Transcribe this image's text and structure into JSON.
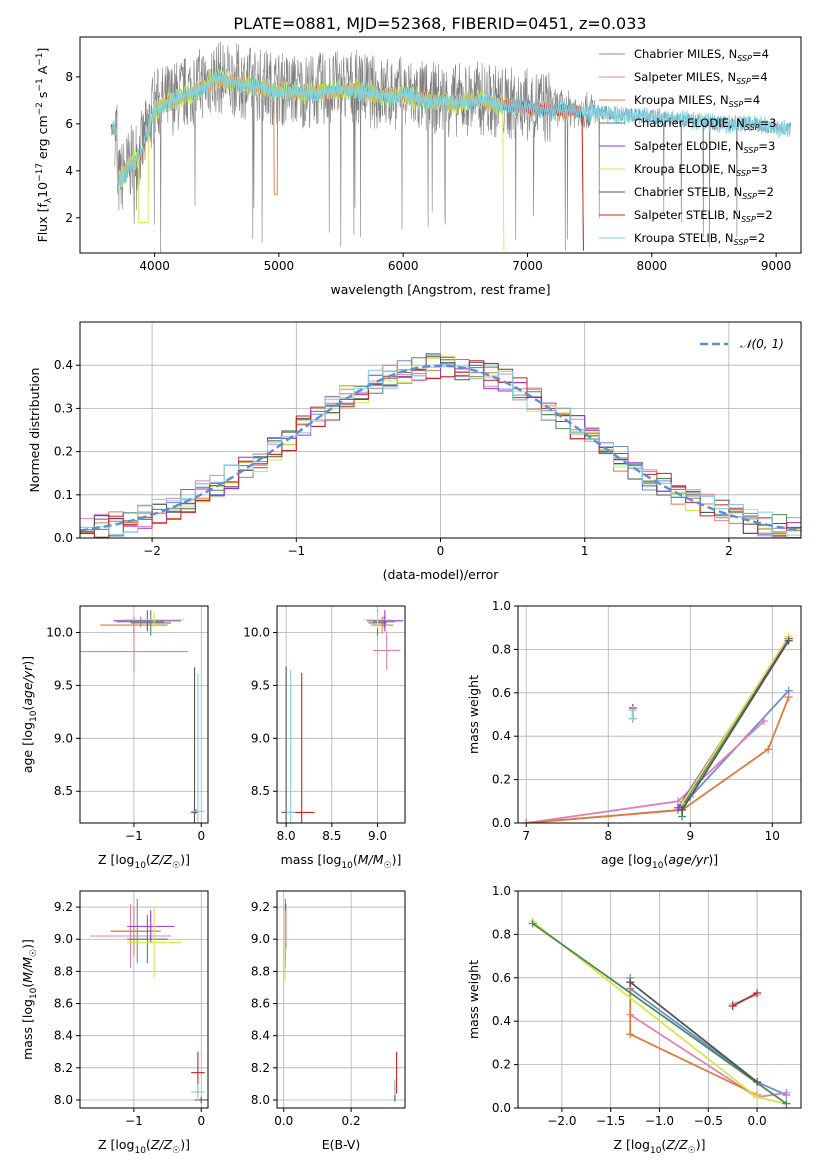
{
  "figure_title": "PLATE=0881, MJD=52368, FIBERID=0451, z=0.033",
  "colors": {
    "Chabrier MILES": "#6a8fd2",
    "Salpeter MILES": "#e080b8",
    "Kroupa MILES": "#e07b39",
    "Chabrier ELODIE": "#4e8a5a",
    "Salpeter ELODIE": "#9933cc",
    "Kroupa ELODIE": "#d4e84a",
    "Chabrier STELIB": "#555555",
    "Salpeter STELIB": "#cc2222",
    "Kroupa STELIB": "#80d0e0",
    "gauss": "#5b8fd6",
    "data": "#808080"
  },
  "chart_data": [
    {
      "id": "spectrum",
      "type": "line",
      "title": "PLATE=0881, MJD=52368, FIBERID=0451, z=0.033",
      "xlabel": "wavelength [Angstrom, rest frame]",
      "ylabel_parts": [
        "Flux [f",
        "λ",
        "10",
        "−17",
        " erg cm",
        "−2",
        " s",
        "−1",
        " A",
        "−1",
        "]"
      ],
      "xlim": [
        3400,
        9200
      ],
      "ylim": [
        0.5,
        9.7
      ],
      "xticks": [
        4000,
        5000,
        6000,
        7000,
        8000,
        9000
      ],
      "yticks": [
        2,
        4,
        6,
        8
      ],
      "legend_position": "upper right",
      "legend": [
        {
          "name": "Chabrier MILES",
          "nssp": "4"
        },
        {
          "name": "Salpeter MILES",
          "nssp": "4"
        },
        {
          "name": "Kroupa MILES",
          "nssp": "4"
        },
        {
          "name": "Chabrier ELODIE",
          "nssp": "3"
        },
        {
          "name": "Salpeter ELODIE",
          "nssp": "3"
        },
        {
          "name": "Kroupa ELODIE",
          "nssp": "3"
        },
        {
          "name": "Chabrier STELIB",
          "nssp": "2"
        },
        {
          "name": "Salpeter STELIB",
          "nssp": "2"
        },
        {
          "name": "Kroupa STELIB",
          "nssp": "2"
        }
      ],
      "data_continuum": [
        [
          3700,
          3.4
        ],
        [
          3800,
          4.3
        ],
        [
          3900,
          5.0
        ],
        [
          4000,
          6.8
        ],
        [
          4100,
          7.0
        ],
        [
          4200,
          7.2
        ],
        [
          4300,
          7.5
        ],
        [
          4400,
          7.8
        ],
        [
          4500,
          8.0
        ],
        [
          4600,
          7.9
        ],
        [
          4800,
          7.7
        ],
        [
          5000,
          7.5
        ],
        [
          5200,
          7.4
        ],
        [
          5400,
          7.5
        ],
        [
          5600,
          7.6
        ],
        [
          5800,
          7.3
        ],
        [
          6000,
          7.3
        ],
        [
          6200,
          7.1
        ],
        [
          6400,
          7.0
        ],
        [
          6600,
          7.1
        ],
        [
          6800,
          6.9
        ],
        [
          7000,
          6.8
        ],
        [
          7200,
          6.7
        ],
        [
          7400,
          6.6
        ],
        [
          7600,
          6.5
        ],
        [
          7800,
          6.4
        ],
        [
          8000,
          6.3
        ],
        [
          8200,
          6.2
        ],
        [
          8400,
          6.1
        ],
        [
          8600,
          6.0
        ],
        [
          8800,
          6.0
        ],
        [
          9000,
          5.8
        ],
        [
          9100,
          5.8
        ]
      ],
      "model_continuum": [
        [
          3700,
          3.5
        ],
        [
          3800,
          4.2
        ],
        [
          3900,
          4.8
        ],
        [
          4000,
          6.6
        ],
        [
          4100,
          6.9
        ],
        [
          4200,
          7.1
        ],
        [
          4300,
          7.3
        ],
        [
          4400,
          7.6
        ],
        [
          4500,
          7.9
        ],
        [
          4600,
          7.8
        ],
        [
          4800,
          7.6
        ],
        [
          5000,
          7.4
        ],
        [
          5200,
          7.3
        ],
        [
          5400,
          7.4
        ],
        [
          5600,
          7.45
        ],
        [
          5800,
          7.2
        ],
        [
          6000,
          7.2
        ],
        [
          6200,
          7.0
        ],
        [
          6400,
          6.9
        ],
        [
          6600,
          7.0
        ],
        [
          6800,
          6.8
        ],
        [
          7000,
          6.7
        ],
        [
          7200,
          6.6
        ],
        [
          7400,
          6.55
        ],
        [
          7600,
          6.45
        ],
        [
          7800,
          6.35
        ],
        [
          8000,
          6.3
        ],
        [
          8200,
          6.2
        ],
        [
          8400,
          6.1
        ],
        [
          8600,
          6.0
        ],
        [
          8800,
          6.0
        ],
        [
          9000,
          5.85
        ],
        [
          9100,
          5.8
        ]
      ]
    },
    {
      "id": "residuals",
      "type": "line",
      "xlabel": "(data-model)/error",
      "ylabel": "Normed distribution",
      "xlim": [
        -2.5,
        2.5
      ],
      "ylim": [
        0,
        0.5
      ],
      "xticks": [
        -2,
        -1,
        0,
        1,
        2
      ],
      "yticks": [
        0.0,
        0.1,
        0.2,
        0.3,
        0.4
      ],
      "grid": true,
      "legend_position": "upper right",
      "legend_label": "𝒩(0, 1)",
      "gaussian": {
        "mean": 0,
        "sigma": 1
      },
      "bin_width": 0.1
    },
    {
      "id": "age_vs_Z",
      "type": "scatter",
      "xlabel": "Z [log10(Z/Z☉)]",
      "ylabel": "age  [log10(age/yr)]",
      "xlim": [
        -1.8,
        0.1
      ],
      "ylim": [
        8.2,
        10.25
      ],
      "xticks": [
        -1,
        0
      ],
      "yticks": [
        8.5,
        9.0,
        9.5,
        10.0
      ],
      "grid": true,
      "points": [
        {
          "s": "Chabrier MILES",
          "x": -0.9,
          "y": 10.1,
          "xe": 0.35,
          "ye": 0.05
        },
        {
          "s": "Salpeter MILES",
          "x": -1.0,
          "y": 9.82,
          "xe": 0.8,
          "ye": 0.2
        },
        {
          "s": "Kroupa MILES",
          "x": -1.0,
          "y": 10.07,
          "xe": 0.5,
          "ye": 0.08
        },
        {
          "s": "Chabrier ELODIE",
          "x": -0.75,
          "y": 10.09,
          "xe": 0.3,
          "ye": 0.12
        },
        {
          "s": "Salpeter ELODIE",
          "x": -0.8,
          "y": 10.11,
          "xe": 0.5,
          "ye": 0.1
        },
        {
          "s": "Kroupa ELODIE",
          "x": -0.7,
          "y": 10.12,
          "xe": 0.45,
          "ye": 0.08
        },
        {
          "s": "Chabrier STELIB",
          "x": -0.1,
          "y": 8.3,
          "xe": 0.05,
          "ye": 1.37
        },
        {
          "s": "Salpeter STELIB",
          "x": -0.08,
          "y": 8.31,
          "xe": 0.04,
          "ye": 0.02
        },
        {
          "s": "Kroupa STELIB",
          "x": -0.05,
          "y": 8.31,
          "xe": 0.1,
          "ye": 1.3
        }
      ]
    },
    {
      "id": "age_vs_mass",
      "type": "scatter",
      "xlabel": "mass [log10(M/M☉)]",
      "xlim": [
        7.9,
        9.3
      ],
      "ylim": [
        8.2,
        10.25
      ],
      "xticks": [
        8.0,
        8.5,
        9.0
      ],
      "yticks": [
        8.5,
        9.0,
        9.5,
        10.0
      ],
      "grid": true,
      "points": [
        {
          "s": "Chabrier MILES",
          "x": 9.07,
          "y": 10.1,
          "xe": 0.12,
          "ye": 0.05
        },
        {
          "s": "Salpeter MILES",
          "x": 9.1,
          "y": 9.83,
          "xe": 0.15,
          "ye": 0.18
        },
        {
          "s": "Kroupa MILES",
          "x": 9.05,
          "y": 10.07,
          "xe": 0.12,
          "ye": 0.08
        },
        {
          "s": "Chabrier ELODIE",
          "x": 9.0,
          "y": 10.09,
          "xe": 0.1,
          "ye": 0.12
        },
        {
          "s": "Salpeter ELODIE",
          "x": 9.08,
          "y": 10.11,
          "xe": 0.2,
          "ye": 0.1
        },
        {
          "s": "Kroupa ELODIE",
          "x": 9.0,
          "y": 10.12,
          "xe": 0.15,
          "ye": 0.08
        },
        {
          "s": "Chabrier STELIB",
          "x": 8.0,
          "y": 8.3,
          "xe": 0.05,
          "ye": 1.38
        },
        {
          "s": "Salpeter STELIB",
          "x": 8.17,
          "y": 8.3,
          "xe": 0.14,
          "ye": 1.32
        },
        {
          "s": "Kroupa STELIB",
          "x": 8.05,
          "y": 8.3,
          "xe": 0.05,
          "ye": 1.35
        }
      ]
    },
    {
      "id": "weight_vs_age",
      "type": "line",
      "xlabel": "age  [log10(age/yr)]",
      "ylabel": "mass weight",
      "xlim": [
        6.9,
        10.35
      ],
      "ylim": [
        0,
        1.0
      ],
      "xticks": [
        7,
        8,
        9,
        10
      ],
      "yticks": [
        0.0,
        0.2,
        0.4,
        0.6,
        0.8,
        1.0
      ],
      "grid": true,
      "series": [
        {
          "s": "Chabrier MILES",
          "pts": [
            [
              7.0,
              0.0
            ],
            [
              8.85,
              0.06
            ],
            [
              9.0,
              0.12
            ],
            [
              10.2,
              0.61
            ]
          ]
        },
        {
          "s": "Salpeter MILES",
          "pts": [
            [
              7.0,
              0.0
            ],
            [
              8.85,
              0.1
            ],
            [
              9.9,
              0.47
            ]
          ]
        },
        {
          "s": "Kroupa MILES",
          "pts": [
            [
              7.0,
              0.0
            ],
            [
              8.9,
              0.06
            ],
            [
              9.95,
              0.34
            ],
            [
              10.2,
              0.58
            ]
          ]
        },
        {
          "s": "Chabrier ELODIE",
          "pts": [
            [
              8.9,
              0.03
            ],
            [
              8.9,
              0.08
            ],
            [
              10.2,
              0.85
            ]
          ]
        },
        {
          "s": "Salpeter ELODIE",
          "pts": [
            [
              8.85,
              0.07
            ],
            [
              10.2,
              0.85
            ]
          ]
        },
        {
          "s": "Kroupa ELODIE",
          "pts": [
            [
              8.9,
              0.09
            ],
            [
              10.2,
              0.86
            ]
          ]
        },
        {
          "s": "Chabrier STELIB",
          "pts": [
            [
              8.9,
              0.06
            ],
            [
              10.2,
              0.84
            ]
          ]
        },
        {
          "s": "Salpeter STELIB",
          "pts": [
            [
              8.3,
              0.48
            ],
            [
              8.3,
              0.53
            ]
          ]
        },
        {
          "s": "Kroupa STELIB",
          "pts": [
            [
              8.3,
              0.48
            ],
            [
              8.3,
              0.52
            ]
          ]
        }
      ]
    },
    {
      "id": "mass_vs_Z",
      "type": "scatter",
      "xlabel": "Z [log10(Z/Z☉)]",
      "ylabel": "mass [log10(M/M☉)]",
      "xlim": [
        -1.8,
        0.1
      ],
      "ylim": [
        7.95,
        9.3
      ],
      "xticks": [
        -1,
        0
      ],
      "yticks": [
        8.0,
        8.2,
        8.4,
        8.6,
        8.8,
        9.0,
        9.2
      ],
      "grid": true,
      "points": [
        {
          "s": "Chabrier MILES",
          "x": -0.95,
          "y": 9.05,
          "xe": 0.35,
          "ye": 0.2
        },
        {
          "s": "Salpeter MILES",
          "x": -1.05,
          "y": 9.02,
          "xe": 0.6,
          "ye": 0.2
        },
        {
          "s": "Kroupa MILES",
          "x": -1.0,
          "y": 9.05,
          "xe": 0.35,
          "ye": 0.15
        },
        {
          "s": "Chabrier ELODIE",
          "x": -0.8,
          "y": 9.0,
          "xe": 0.3,
          "ye": 0.15
        },
        {
          "s": "Salpeter ELODIE",
          "x": -0.75,
          "y": 9.08,
          "xe": 0.35,
          "ye": 0.1
        },
        {
          "s": "Kroupa ELODIE",
          "x": -0.7,
          "y": 8.98,
          "xe": 0.4,
          "ye": 0.22
        },
        {
          "s": "Chabrier STELIB",
          "x": 0.0,
          "y": 8.0,
          "xe": 0.1,
          "ye": 0.02
        },
        {
          "s": "Salpeter STELIB",
          "x": -0.05,
          "y": 8.17,
          "xe": 0.1,
          "ye": 0.13
        },
        {
          "s": "Kroupa STELIB",
          "x": -0.05,
          "y": 8.05,
          "xe": 0.1,
          "ye": 0.05
        }
      ]
    },
    {
      "id": "mass_vs_ebv",
      "type": "scatter",
      "xlabel": "E(B-V)",
      "xlim": [
        -0.02,
        0.36
      ],
      "ylim": [
        7.95,
        9.3
      ],
      "xticks": [
        0.0,
        0.2
      ],
      "yticks": [
        8.0,
        8.2,
        8.4,
        8.6,
        8.8,
        9.0,
        9.2
      ],
      "grid": true,
      "points": [
        {
          "s": "Chabrier MILES",
          "x": 0.005,
          "y": 9.05,
          "xe": 0.0,
          "ye": 0.2
        },
        {
          "s": "Salpeter MILES",
          "x": 0.005,
          "y": 9.02,
          "xe": 0.0,
          "ye": 0.2
        },
        {
          "s": "Kroupa MILES",
          "x": 0.005,
          "y": 9.05,
          "xe": 0.0,
          "ye": 0.15
        },
        {
          "s": "Chabrier ELODIE",
          "x": 0.005,
          "y": 9.0,
          "xe": 0.0,
          "ye": 0.15
        },
        {
          "s": "Salpeter ELODIE",
          "x": 0.006,
          "y": 9.08,
          "xe": 0.0,
          "ye": 0.14
        },
        {
          "s": "Kroupa ELODIE",
          "x": 0.004,
          "y": 8.96,
          "xe": 0.0,
          "ye": 0.22
        },
        {
          "s": "Chabrier STELIB",
          "x": 0.33,
          "y": 8.05,
          "xe": 0.0,
          "ye": 0.06
        },
        {
          "s": "Salpeter STELIB",
          "x": 0.335,
          "y": 8.17,
          "xe": 0.0,
          "ye": 0.13
        },
        {
          "s": "Kroupa STELIB",
          "x": 0.33,
          "y": 8.08,
          "xe": 0.0,
          "ye": 0.05
        }
      ]
    },
    {
      "id": "weight_vs_Z",
      "type": "line",
      "xlabel": "Z [log10(Z/Z☉)]",
      "ylabel": "mass weight",
      "xlim": [
        -2.45,
        0.45
      ],
      "ylim": [
        0,
        1.0
      ],
      "xticks": [
        -2.0,
        -1.5,
        -1.0,
        -0.5,
        0.0
      ],
      "yticks": [
        0.0,
        0.2,
        0.4,
        0.6,
        0.8,
        1.0
      ],
      "grid": true,
      "series": [
        {
          "s": "Chabrier MILES",
          "pts": [
            [
              -1.3,
              0.6
            ],
            [
              -1.3,
              0.55
            ],
            [
              0.0,
              0.12
            ],
            [
              0.3,
              0.06
            ]
          ]
        },
        {
          "s": "Salpeter MILES",
          "pts": [
            [
              -1.3,
              0.43
            ],
            [
              0.0,
              0.05
            ],
            [
              0.3,
              0.07
            ]
          ]
        },
        {
          "s": "Kroupa MILES",
          "pts": [
            [
              -1.3,
              0.58
            ],
            [
              -1.3,
              0.34
            ],
            [
              0.0,
              0.06
            ]
          ]
        },
        {
          "s": "Kroupa ELODIE",
          "pts": [
            [
              -2.3,
              0.86
            ],
            [
              0.0,
              0.05
            ],
            [
              0.3,
              0.02
            ]
          ]
        },
        {
          "s": "Chabrier ELODIE",
          "pts": [
            [
              -2.3,
              0.85
            ],
            [
              0.3,
              0.02
            ]
          ]
        },
        {
          "s": "Chabrier STELIB",
          "pts": [
            [
              -1.3,
              0.58
            ],
            [
              0.0,
              0.12
            ]
          ]
        },
        {
          "s": "Kroupa STELIB",
          "pts": [
            [
              -0.25,
              0.48
            ],
            [
              0.0,
              0.52
            ]
          ]
        },
        {
          "s": "Salpeter STELIB",
          "pts": [
            [
              -0.25,
              0.47
            ],
            [
              0.0,
              0.53
            ]
          ]
        }
      ]
    }
  ]
}
